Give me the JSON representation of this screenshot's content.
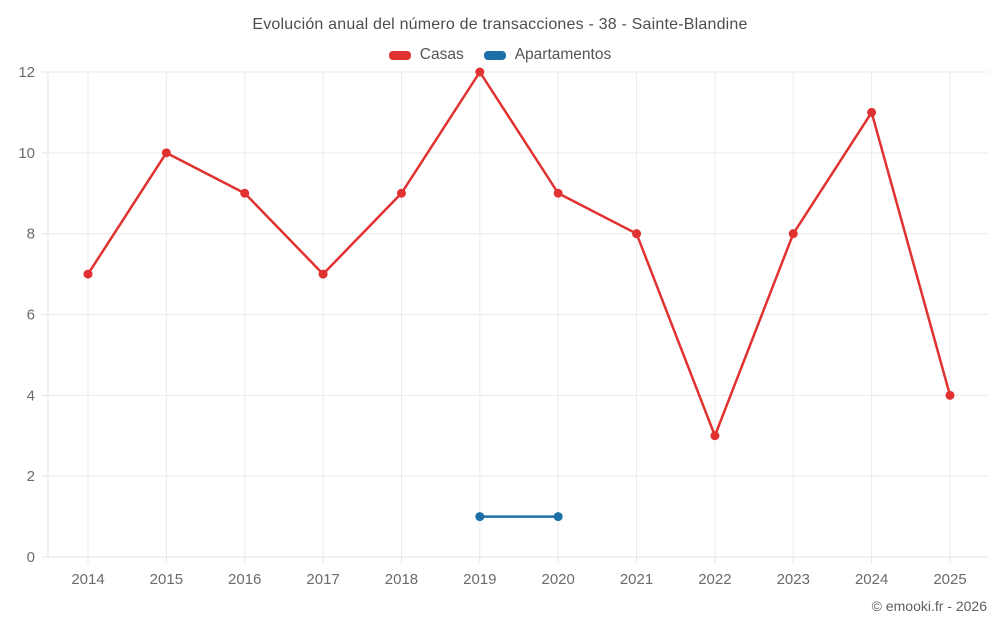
{
  "header": {
    "title": "Evolución anual del número de transacciones - 38 - Sainte-Blandine"
  },
  "legend": {
    "items": [
      {
        "label": "Casas",
        "color": "#e03231"
      },
      {
        "label": "Apartamentos",
        "color": "#1d6fa8"
      }
    ]
  },
  "footer": {
    "credit": "© emooki.fr - 2026"
  },
  "colors": {
    "casas": "#e03231",
    "apartamentos": "#1d6fa8",
    "gridline": "#ebebeb",
    "axis_line": "#e4e4e4",
    "tick_label": "#6b6b6b"
  },
  "chart_data": {
    "type": "line",
    "title": "Evolución anual del número de transacciones - 38 - Sainte-Blandine",
    "categories": [
      "2014",
      "2015",
      "2016",
      "2017",
      "2018",
      "2019",
      "2020",
      "2021",
      "2022",
      "2023",
      "2024",
      "2025"
    ],
    "series": [
      {
        "name": "Casas",
        "color": "#e03231",
        "values": [
          7,
          10,
          9,
          7,
          9,
          12,
          9,
          8,
          3,
          8,
          11,
          4
        ]
      },
      {
        "name": "Apartamentos",
        "color": "#1d6fa8",
        "values": [
          null,
          null,
          null,
          null,
          null,
          1,
          1,
          null,
          null,
          null,
          null,
          null
        ]
      }
    ],
    "xlabel": "",
    "ylabel": "",
    "ylim": [
      0,
      12
    ],
    "yticks": [
      0,
      2,
      4,
      6,
      8,
      10,
      12
    ],
    "grid": true,
    "legend_position": "top"
  }
}
